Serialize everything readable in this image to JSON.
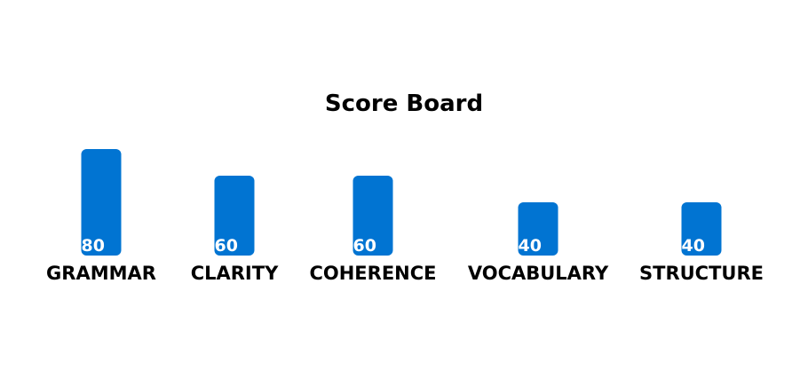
{
  "chart_data": {
    "type": "bar",
    "title": "Score Board",
    "categories": [
      "GRAMMAR",
      "CLARITY",
      "COHERENCE",
      "VOCABULARY",
      "STRUCTURE"
    ],
    "values": [
      80,
      60,
      60,
      40,
      40
    ],
    "xlabel": "",
    "ylabel": "",
    "ylim": [
      0,
      80
    ],
    "grid": false,
    "legend": "none",
    "colors": {
      "bar": "#0174d2",
      "bar_label": "#ffffff",
      "text": "#000000",
      "background": "#ffffff"
    }
  }
}
